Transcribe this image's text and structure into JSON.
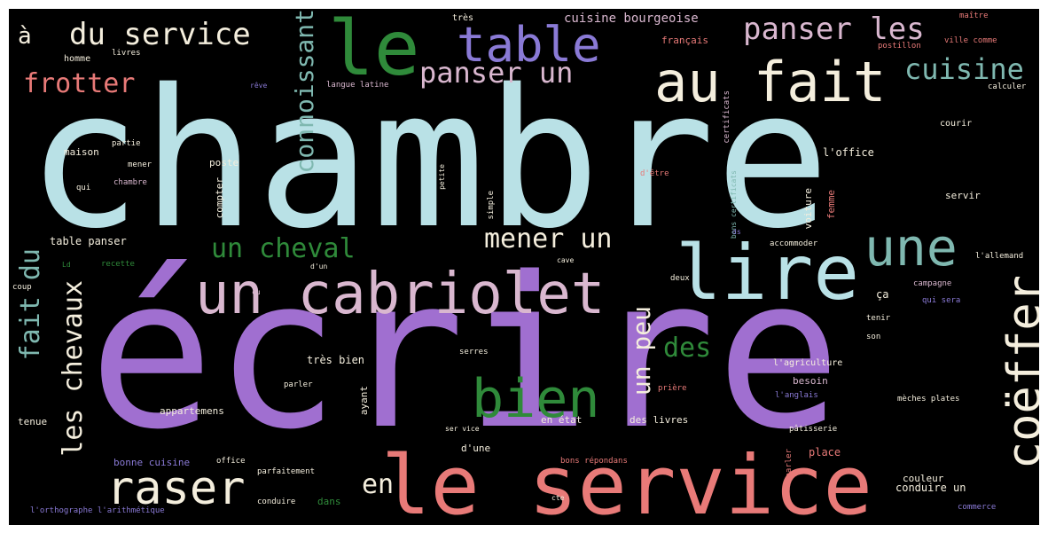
{
  "colors": {
    "background": "#000000",
    "frame": "#ffffff",
    "light_blue": "#b9e1e6",
    "purple": "#a06fd0",
    "salmon": "#e87a78",
    "green": "#2f8a3a",
    "pink": "#d9b7cf",
    "periwinkle": "#8a7ad6",
    "teal": "#7fb8b0",
    "cream": "#f4eedd"
  },
  "words": [
    {
      "text": "chambre"
    },
    {
      "text": "écrire"
    },
    {
      "text": "le service"
    },
    {
      "text": "lire"
    },
    {
      "text": "un cabriolet"
    },
    {
      "text": "au fait"
    },
    {
      "text": "le"
    },
    {
      "text": "table"
    },
    {
      "text": "une"
    },
    {
      "text": "bien"
    },
    {
      "text": "raser"
    },
    {
      "text": "coëffer"
    },
    {
      "text": "du service"
    },
    {
      "text": "panser les"
    },
    {
      "text": "panser un"
    },
    {
      "text": "cuisine"
    },
    {
      "text": "frotter"
    },
    {
      "text": "connoissant"
    },
    {
      "text": "un cheval"
    },
    {
      "text": "mener un"
    },
    {
      "text": "fait du"
    },
    {
      "text": "les chevaux"
    },
    {
      "text": "un peu"
    },
    {
      "text": "des"
    },
    {
      "text": "en"
    },
    {
      "text": "à"
    },
    {
      "text": "très"
    },
    {
      "text": "cuisine bourgeoise"
    },
    {
      "text": "maître"
    },
    {
      "text": "français"
    },
    {
      "text": "postillon"
    },
    {
      "text": "ville comme"
    },
    {
      "text": "homme"
    },
    {
      "text": "livres"
    },
    {
      "text": "rêve"
    },
    {
      "text": "langue latine"
    },
    {
      "text": "certificats"
    },
    {
      "text": "bons certificats"
    },
    {
      "text": "calculer"
    },
    {
      "text": "courir"
    },
    {
      "text": "partie"
    },
    {
      "text": "maison"
    },
    {
      "text": "l'office"
    },
    {
      "text": "poste"
    },
    {
      "text": "mener"
    },
    {
      "text": "chambre"
    },
    {
      "text": "qui"
    },
    {
      "text": "petite"
    },
    {
      "text": "simple"
    },
    {
      "text": "d'être"
    },
    {
      "text": "compter"
    },
    {
      "text": "voiture"
    },
    {
      "text": "femme"
    },
    {
      "text": "servir"
    },
    {
      "text": "table panser"
    },
    {
      "text": "accommoder"
    },
    {
      "text": "recette"
    },
    {
      "text": "d'un"
    },
    {
      "text": "cave"
    },
    {
      "text": "l'allemand"
    },
    {
      "text": "coup"
    },
    {
      "text": "deux"
    },
    {
      "text": "campagne"
    },
    {
      "text": "ça"
    },
    {
      "text": "qui sera"
    },
    {
      "text": "tenir"
    },
    {
      "text": "son"
    },
    {
      "text": "très bien"
    },
    {
      "text": "serres"
    },
    {
      "text": "l'agriculture"
    },
    {
      "text": "parler"
    },
    {
      "text": "prière"
    },
    {
      "text": "besoin"
    },
    {
      "text": "l'anglais"
    },
    {
      "text": "ayant"
    },
    {
      "text": "appartemens"
    },
    {
      "text": "tenue"
    },
    {
      "text": "en état"
    },
    {
      "text": "des livres"
    },
    {
      "text": "mèches plates"
    },
    {
      "text": "ser vice"
    },
    {
      "text": "pâtisserie"
    },
    {
      "text": "d'une"
    },
    {
      "text": "bonne cuisine"
    },
    {
      "text": "office"
    },
    {
      "text": "bons répondans"
    },
    {
      "text": "parler"
    },
    {
      "text": "place"
    },
    {
      "text": "parfaitement"
    },
    {
      "text": "couleur"
    },
    {
      "text": "dans"
    },
    {
      "text": "conduire un"
    },
    {
      "text": "conduire"
    },
    {
      "text": "cte"
    },
    {
      "text": "l'orthographe l'arithmétique"
    },
    {
      "text": "commerce"
    },
    {
      "text": "Ld"
    },
    {
      "text": "cu"
    },
    {
      "text": "ds"
    }
  ]
}
